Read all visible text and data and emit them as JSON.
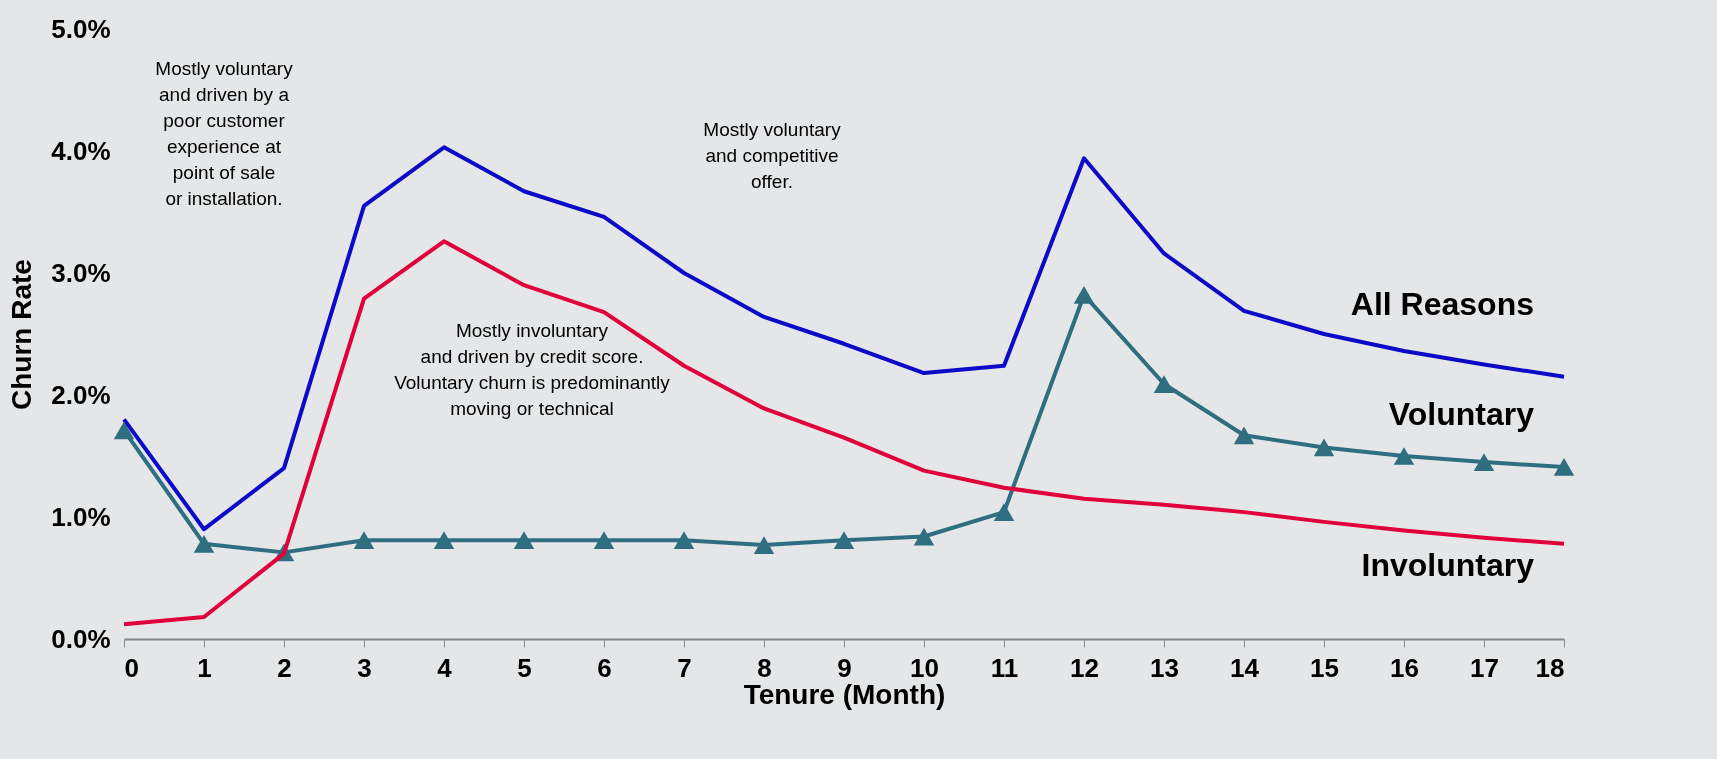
{
  "chart_data": {
    "type": "line",
    "xlabel": "Tenure (Month)",
    "ylabel": "Churn Rate",
    "x": [
      0,
      1,
      2,
      3,
      4,
      5,
      6,
      7,
      8,
      9,
      10,
      11,
      12,
      13,
      14,
      15,
      16,
      17,
      18
    ],
    "series": [
      {
        "name": "All Reasons",
        "color": "#0a0ac8",
        "values": [
          1.8,
          0.9,
          1.4,
          3.55,
          4.03,
          3.67,
          3.46,
          3.0,
          2.64,
          2.42,
          2.18,
          2.24,
          3.94,
          3.16,
          2.69,
          2.5,
          2.36,
          2.25,
          2.15
        ]
      },
      {
        "name": "Voluntary",
        "color": "#2e6e80",
        "marker": "triangle",
        "values": [
          1.71,
          0.78,
          0.71,
          0.81,
          0.81,
          0.81,
          0.81,
          0.81,
          0.77,
          0.81,
          0.84,
          1.04,
          2.82,
          2.09,
          1.67,
          1.57,
          1.5,
          1.45,
          1.41
        ]
      },
      {
        "name": "Involuntary",
        "color": "#e0003c",
        "values": [
          0.12,
          0.18,
          0.7,
          2.79,
          3.26,
          2.9,
          2.68,
          2.24,
          1.89,
          1.65,
          1.38,
          1.24,
          1.15,
          1.1,
          1.04,
          0.96,
          0.89,
          0.83,
          0.78
        ]
      }
    ],
    "xlim": [
      0,
      18
    ],
    "xticks": [
      0,
      1,
      2,
      3,
      4,
      5,
      6,
      7,
      8,
      9,
      10,
      11,
      12,
      13,
      14,
      15,
      16,
      17,
      18
    ],
    "ylim": [
      0,
      5
    ],
    "yticks": [
      {
        "value": 0,
        "label": "0.0%"
      },
      {
        "value": 1,
        "label": "1.0%"
      },
      {
        "value": 2,
        "label": "2.0%"
      },
      {
        "value": 3,
        "label": "3.0%"
      },
      {
        "value": 4,
        "label": "4.0%"
      },
      {
        "value": 5,
        "label": "5.0%"
      }
    ],
    "grid": false,
    "annotations": [
      "Mostly voluntary\nand driven by a\npoor customer\nexperience at\npoint of sale\nor installation.",
      "Mostly involuntary\nand driven by credit score.\nVoluntary churn is predominantly\nmoving or technical",
      "Mostly voluntary\nand competitive\noffer."
    ]
  }
}
